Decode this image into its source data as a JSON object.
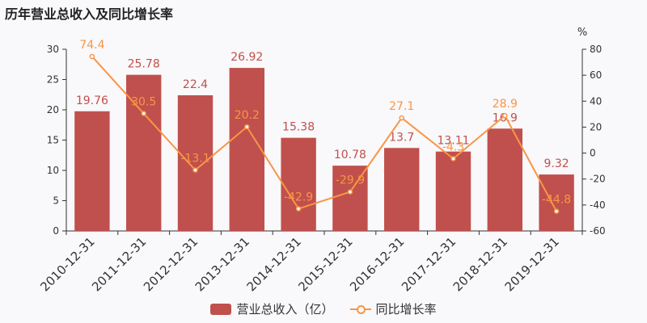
{
  "chart_data": {
    "type": "bar+line",
    "title": "历年营业总收入及同比增长率",
    "categories": [
      "2010-12-31",
      "2011-12-31",
      "2012-12-31",
      "2013-12-31",
      "2014-12-31",
      "2015-12-31",
      "2016-12-31",
      "2017-12-31",
      "2018-12-31",
      "2019-12-31"
    ],
    "series": [
      {
        "name": "营业总收入（亿）",
        "type": "bar",
        "axis": "left",
        "color": "#c0504d",
        "values": [
          19.76,
          25.78,
          22.4,
          26.92,
          15.38,
          10.78,
          13.7,
          13.11,
          16.9,
          9.32
        ],
        "labels": [
          "19.76",
          "25.78",
          "22.4",
          "26.92",
          "15.38",
          "10.78",
          "13.7",
          "13.11",
          "16.9",
          "9.32"
        ]
      },
      {
        "name": "同比增长率",
        "type": "line",
        "axis": "right",
        "color": "#f79646",
        "values": [
          74.4,
          30.5,
          -13.1,
          20.2,
          -42.9,
          -29.9,
          27.1,
          -4.3,
          28.9,
          -44.8
        ],
        "labels": [
          "74.4",
          "30.5",
          "-13.1",
          "20.2",
          "-42.9",
          "-29.9",
          "27.1",
          "-4.3",
          "28.9",
          "-44.8"
        ]
      }
    ],
    "y_left": {
      "min": 0,
      "max": 30,
      "ticks": [
        "0",
        "5",
        "10",
        "15",
        "20",
        "25",
        "30"
      ]
    },
    "y_right": {
      "min": -60,
      "max": 80,
      "ticks": [
        "-60",
        "-40",
        "-20",
        "0",
        "20",
        "40",
        "60",
        "80"
      ],
      "unit": "%"
    },
    "legend_position": "bottom-center"
  }
}
